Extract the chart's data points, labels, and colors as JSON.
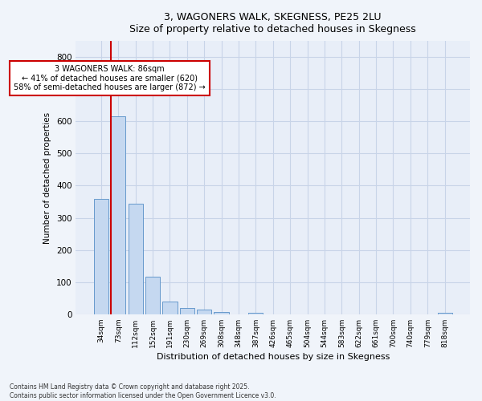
{
  "title_line1": "3, WAGONERS WALK, SKEGNESS, PE25 2LU",
  "title_line2": "Size of property relative to detached houses in Skegness",
  "xlabel": "Distribution of detached houses by size in Skegness",
  "ylabel": "Number of detached properties",
  "categories": [
    "34sqm",
    "73sqm",
    "112sqm",
    "152sqm",
    "191sqm",
    "230sqm",
    "269sqm",
    "308sqm",
    "348sqm",
    "387sqm",
    "426sqm",
    "465sqm",
    "504sqm",
    "544sqm",
    "583sqm",
    "622sqm",
    "661sqm",
    "700sqm",
    "740sqm",
    "779sqm",
    "818sqm"
  ],
  "values": [
    360,
    615,
    345,
    118,
    40,
    20,
    14,
    8,
    0,
    5,
    0,
    0,
    0,
    0,
    0,
    0,
    0,
    0,
    0,
    0,
    5
  ],
  "bar_color": "#c5d8f0",
  "bar_edge_color": "#6699cc",
  "grid_color": "#c8d4e8",
  "background_color": "#f0f4fa",
  "plot_bg_color": "#e8eef8",
  "annotation_text": "3 WAGONERS WALK: 86sqm\n← 41% of detached houses are smaller (620)\n58% of semi-detached houses are larger (872) →",
  "annotation_box_color": "#ffffff",
  "annotation_box_edge": "#cc0000",
  "vline_color": "#cc0000",
  "vline_x": 1.0,
  "ylim": [
    0,
    850
  ],
  "yticks": [
    0,
    100,
    200,
    300,
    400,
    500,
    600,
    700,
    800
  ],
  "footer_line1": "Contains HM Land Registry data © Crown copyright and database right 2025.",
  "footer_line2": "Contains public sector information licensed under the Open Government Licence v3.0.",
  "figsize": [
    6.0,
    5.0
  ],
  "dpi": 100
}
